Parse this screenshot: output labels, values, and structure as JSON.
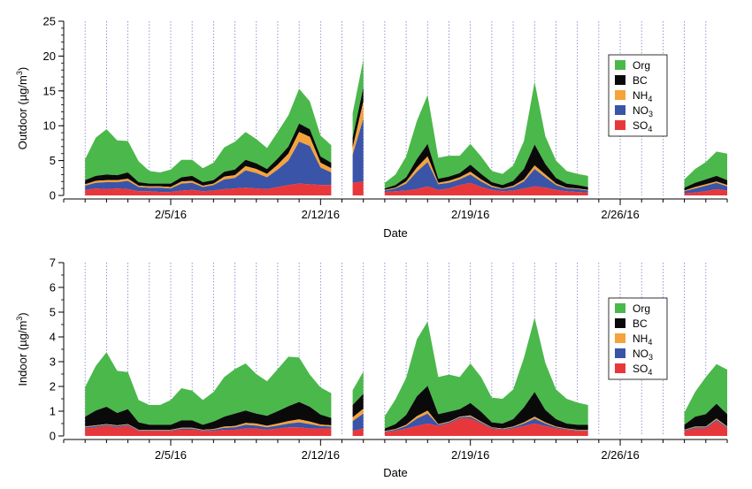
{
  "chart_data": [
    {
      "type": "area",
      "stacked": true,
      "xlabel": "Date",
      "ylabel": "Outdoor (µg/m³)",
      "ylabel_parts": {
        "text": "Outdoor (µg/m",
        "sup": "3",
        "close": ")"
      },
      "ylim": [
        0,
        25
      ],
      "yticks": [
        0,
        5,
        10,
        15,
        20,
        25
      ],
      "xlim": [
        "2016-01-31",
        "2016-03-02"
      ],
      "xticks": [
        "2/5/16",
        "2/12/16",
        "2/19/16",
        "2/26/16"
      ],
      "grid": "vertical dotted daily lines",
      "legend_position": "right",
      "legend": [
        {
          "label": "Org",
          "base": "Org",
          "sub": ""
        },
        {
          "label": "BC",
          "base": "BC",
          "sub": ""
        },
        {
          "label": "NH4",
          "base": "NH",
          "sub": "4"
        },
        {
          "label": "NO3",
          "base": "NO",
          "sub": "3"
        },
        {
          "label": "SO4",
          "base": "SO",
          "sub": "4"
        }
      ],
      "x_day": [
        1.0,
        1.5,
        2.0,
        2.5,
        3.0,
        3.5,
        4.0,
        4.5,
        5.0,
        5.5,
        6.0,
        6.5,
        7.0,
        7.5,
        8.0,
        8.5,
        9.0,
        9.5,
        10.0,
        10.5,
        11.0,
        11.5,
        12.0,
        12.5,
        13.0,
        13.5,
        14.0,
        14.5,
        15.0,
        15.5,
        16.0,
        16.5,
        17.0,
        17.5,
        18.0,
        18.5,
        19.0,
        19.5,
        20.0,
        20.5,
        21.0,
        21.5,
        22.0,
        22.5,
        23.0,
        23.5,
        24.0,
        24.5,
        25.0,
        25.5,
        26.0,
        26.5,
        27.0,
        27.5,
        28.0,
        28.5,
        29.0,
        29.5,
        30.0,
        30.5,
        31.0
      ],
      "series": [
        {
          "name": "SO4",
          "values": [
            0.8,
            1.0,
            0.9,
            1.0,
            0.9,
            0.6,
            0.6,
            0.5,
            0.5,
            0.7,
            0.8,
            0.6,
            0.7,
            0.9,
            1.0,
            1.1,
            1.0,
            0.9,
            1.2,
            1.5,
            1.7,
            1.6,
            1.5,
            1.5,
            null,
            1.8,
            2.0,
            null,
            0.5,
            0.6,
            0.7,
            0.9,
            1.3,
            0.8,
            1.0,
            1.5,
            1.8,
            1.2,
            0.8,
            0.6,
            0.7,
            1.0,
            1.3,
            1.1,
            0.8,
            0.6,
            0.5,
            0.4,
            null,
            null,
            null,
            null,
            null,
            null,
            null,
            null,
            0.3,
            0.4,
            0.6,
            0.9,
            0.7
          ]
        },
        {
          "name": "NO3",
          "values": [
            0.6,
            0.8,
            1.0,
            0.9,
            1.2,
            0.6,
            0.5,
            0.6,
            0.5,
            1.0,
            1.0,
            0.6,
            0.8,
            1.4,
            1.5,
            2.5,
            2.2,
            1.7,
            2.5,
            3.5,
            6.0,
            5.5,
            2.5,
            1.8,
            null,
            4.0,
            9.0,
            null,
            0.2,
            0.4,
            1.0,
            2.5,
            3.5,
            0.8,
            0.8,
            0.8,
            1.2,
            0.8,
            0.4,
            0.3,
            0.5,
            1.0,
            2.5,
            1.5,
            0.7,
            0.4,
            0.4,
            0.3,
            null,
            null,
            null,
            null,
            null,
            null,
            null,
            null,
            0.3,
            0.6,
            0.8,
            0.9,
            0.6
          ]
        },
        {
          "name": "NH4",
          "values": [
            0.2,
            0.3,
            0.3,
            0.3,
            0.3,
            0.2,
            0.2,
            0.2,
            0.2,
            0.3,
            0.3,
            0.2,
            0.2,
            0.4,
            0.4,
            0.6,
            0.6,
            0.5,
            0.7,
            1.0,
            1.4,
            1.3,
            0.7,
            0.6,
            null,
            1.0,
            2.5,
            null,
            0.1,
            0.1,
            0.3,
            0.6,
            0.8,
            0.2,
            0.3,
            0.3,
            0.4,
            0.3,
            0.2,
            0.1,
            0.2,
            0.3,
            0.5,
            0.4,
            0.2,
            0.1,
            0.1,
            0.1,
            null,
            null,
            null,
            null,
            null,
            null,
            null,
            null,
            0.1,
            0.2,
            0.2,
            0.2,
            0.2
          ]
        },
        {
          "name": "BC",
          "values": [
            0.6,
            0.7,
            0.8,
            0.7,
            0.9,
            0.5,
            0.4,
            0.4,
            0.5,
            0.6,
            0.7,
            0.5,
            0.5,
            0.7,
            0.8,
            0.9,
            0.8,
            0.7,
            0.9,
            1.0,
            1.2,
            1.1,
            0.9,
            0.8,
            null,
            1.5,
            2.0,
            null,
            0.2,
            0.4,
            0.6,
            1.2,
            1.8,
            0.6,
            0.6,
            0.6,
            1.0,
            0.8,
            0.5,
            0.5,
            0.7,
            1.5,
            3.0,
            1.5,
            0.8,
            0.6,
            0.5,
            0.4,
            null,
            null,
            null,
            null,
            null,
            null,
            null,
            null,
            0.4,
            0.6,
            0.7,
            0.8,
            0.7
          ]
        },
        {
          "name": "Org",
          "values": [
            3.0,
            5.5,
            6.5,
            5.0,
            4.5,
            3.0,
            1.8,
            1.6,
            2.0,
            2.5,
            2.3,
            2.0,
            2.5,
            3.5,
            4.0,
            4.0,
            3.5,
            3.0,
            3.8,
            4.5,
            5.0,
            4.0,
            3.0,
            2.5,
            null,
            3.5,
            4.0,
            null,
            0.8,
            1.5,
            3.0,
            5.5,
            7.0,
            3.0,
            3.0,
            2.5,
            3.0,
            2.5,
            1.6,
            1.6,
            2.2,
            4.0,
            9.0,
            4.0,
            2.5,
            1.8,
            1.6,
            1.6,
            null,
            null,
            null,
            null,
            null,
            null,
            null,
            null,
            1.2,
            2.0,
            2.5,
            3.5,
            3.8
          ]
        }
      ]
    },
    {
      "type": "area",
      "stacked": true,
      "xlabel": "Date",
      "ylabel": "Indoor (µg/m³)",
      "ylabel_parts": {
        "text": "Indoor (µg/m",
        "sup": "3",
        "close": ")"
      },
      "ylim": [
        0,
        7
      ],
      "yticks": [
        0,
        1,
        2,
        3,
        4,
        5,
        6,
        7
      ],
      "xlim": [
        "2016-01-31",
        "2016-03-02"
      ],
      "xticks": [
        "2/5/16",
        "2/12/16",
        "2/19/16",
        "2/26/16"
      ],
      "grid": "vertical dotted daily lines",
      "legend_position": "right",
      "legend": [
        {
          "label": "Org",
          "base": "Org",
          "sub": ""
        },
        {
          "label": "BC",
          "base": "BC",
          "sub": ""
        },
        {
          "label": "NH4",
          "base": "NH",
          "sub": "4"
        },
        {
          "label": "NO3",
          "base": "NO",
          "sub": "3"
        },
        {
          "label": "SO4",
          "base": "SO",
          "sub": "4"
        }
      ],
      "x_day": [
        1.0,
        1.5,
        2.0,
        2.5,
        3.0,
        3.5,
        4.0,
        4.5,
        5.0,
        5.5,
        6.0,
        6.5,
        7.0,
        7.5,
        8.0,
        8.5,
        9.0,
        9.5,
        10.0,
        10.5,
        11.0,
        11.5,
        12.0,
        12.5,
        13.0,
        13.5,
        14.0,
        14.5,
        15.0,
        15.5,
        16.0,
        16.5,
        17.0,
        17.5,
        18.0,
        18.5,
        19.0,
        19.5,
        20.0,
        20.5,
        21.0,
        21.5,
        22.0,
        22.5,
        23.0,
        23.5,
        24.0,
        24.5,
        25.0,
        25.5,
        26.0,
        26.5,
        27.0,
        27.5,
        28.0,
        28.5,
        29.0,
        29.5,
        30.0,
        30.5,
        31.0
      ],
      "series": [
        {
          "name": "SO4",
          "values": [
            0.3,
            0.35,
            0.4,
            0.35,
            0.4,
            0.2,
            0.2,
            0.2,
            0.2,
            0.25,
            0.25,
            0.2,
            0.2,
            0.25,
            0.25,
            0.3,
            0.3,
            0.25,
            0.3,
            0.35,
            0.35,
            0.3,
            0.3,
            0.3,
            null,
            0.2,
            0.3,
            null,
            0.15,
            0.2,
            0.3,
            0.4,
            0.5,
            0.4,
            0.5,
            0.7,
            0.7,
            0.5,
            0.3,
            0.25,
            0.3,
            0.4,
            0.5,
            0.4,
            0.3,
            0.25,
            0.2,
            0.2,
            null,
            null,
            null,
            null,
            null,
            null,
            null,
            null,
            0.2,
            0.3,
            0.3,
            0.6,
            0.3
          ]
        },
        {
          "name": "NO3",
          "values": [
            0.05,
            0.05,
            0.05,
            0.05,
            0.05,
            0.03,
            0.03,
            0.03,
            0.03,
            0.05,
            0.05,
            0.03,
            0.05,
            0.08,
            0.1,
            0.15,
            0.12,
            0.1,
            0.12,
            0.15,
            0.2,
            0.18,
            0.1,
            0.08,
            null,
            0.4,
            0.6,
            null,
            0.03,
            0.05,
            0.1,
            0.3,
            0.4,
            0.05,
            0.05,
            0.05,
            0.08,
            0.05,
            0.03,
            0.03,
            0.05,
            0.1,
            0.2,
            0.1,
            0.05,
            0.03,
            0.03,
            0.03,
            null,
            null,
            null,
            null,
            null,
            null,
            null,
            null,
            0.03,
            0.05,
            0.05,
            0.05,
            0.05
          ]
        },
        {
          "name": "NH4",
          "values": [
            0.03,
            0.03,
            0.03,
            0.03,
            0.03,
            0.02,
            0.02,
            0.02,
            0.02,
            0.03,
            0.03,
            0.02,
            0.03,
            0.05,
            0.05,
            0.08,
            0.08,
            0.06,
            0.08,
            0.1,
            0.12,
            0.1,
            0.06,
            0.05,
            null,
            0.15,
            0.2,
            null,
            0.02,
            0.03,
            0.05,
            0.1,
            0.12,
            0.03,
            0.03,
            0.03,
            0.05,
            0.03,
            0.02,
            0.02,
            0.03,
            0.05,
            0.08,
            0.05,
            0.03,
            0.02,
            0.02,
            0.02,
            null,
            null,
            null,
            null,
            null,
            null,
            null,
            null,
            0.02,
            0.03,
            0.03,
            0.05,
            0.03
          ]
        },
        {
          "name": "BC",
          "values": [
            0.4,
            0.6,
            0.7,
            0.5,
            0.6,
            0.3,
            0.2,
            0.2,
            0.2,
            0.3,
            0.3,
            0.2,
            0.3,
            0.4,
            0.5,
            0.5,
            0.4,
            0.4,
            0.5,
            0.6,
            0.7,
            0.6,
            0.4,
            0.3,
            null,
            0.5,
            0.6,
            null,
            0.1,
            0.2,
            0.4,
            0.8,
            1.0,
            0.4,
            0.4,
            0.3,
            0.5,
            0.4,
            0.2,
            0.2,
            0.3,
            0.6,
            1.0,
            0.5,
            0.3,
            0.2,
            0.2,
            0.2,
            null,
            null,
            null,
            null,
            null,
            null,
            null,
            null,
            0.2,
            0.4,
            0.5,
            0.6,
            0.5
          ]
        },
        {
          "name": "Org",
          "values": [
            1.2,
            1.8,
            2.2,
            1.7,
            1.5,
            0.9,
            0.8,
            0.8,
            1.0,
            1.3,
            1.2,
            1.0,
            1.2,
            1.6,
            1.8,
            1.9,
            1.6,
            1.4,
            1.7,
            2.0,
            1.8,
            1.3,
            1.1,
            1.0,
            null,
            0.6,
            0.9,
            null,
            0.5,
            1.0,
            1.5,
            2.3,
            2.6,
            1.5,
            1.5,
            1.3,
            1.6,
            1.4,
            1.0,
            1.0,
            1.2,
            2.0,
            3.0,
            1.9,
            1.2,
            1.0,
            0.9,
            0.8,
            null,
            null,
            null,
            null,
            null,
            null,
            null,
            null,
            0.5,
            1.0,
            1.5,
            1.6,
            1.8
          ]
        }
      ]
    }
  ],
  "colors": {
    "Org": "#4bb84b",
    "BC": "#0a0a0a",
    "NH4": "#f5a33b",
    "NO3": "#3a54a8",
    "SO4": "#e8373a",
    "grid": "#7a7acc"
  }
}
